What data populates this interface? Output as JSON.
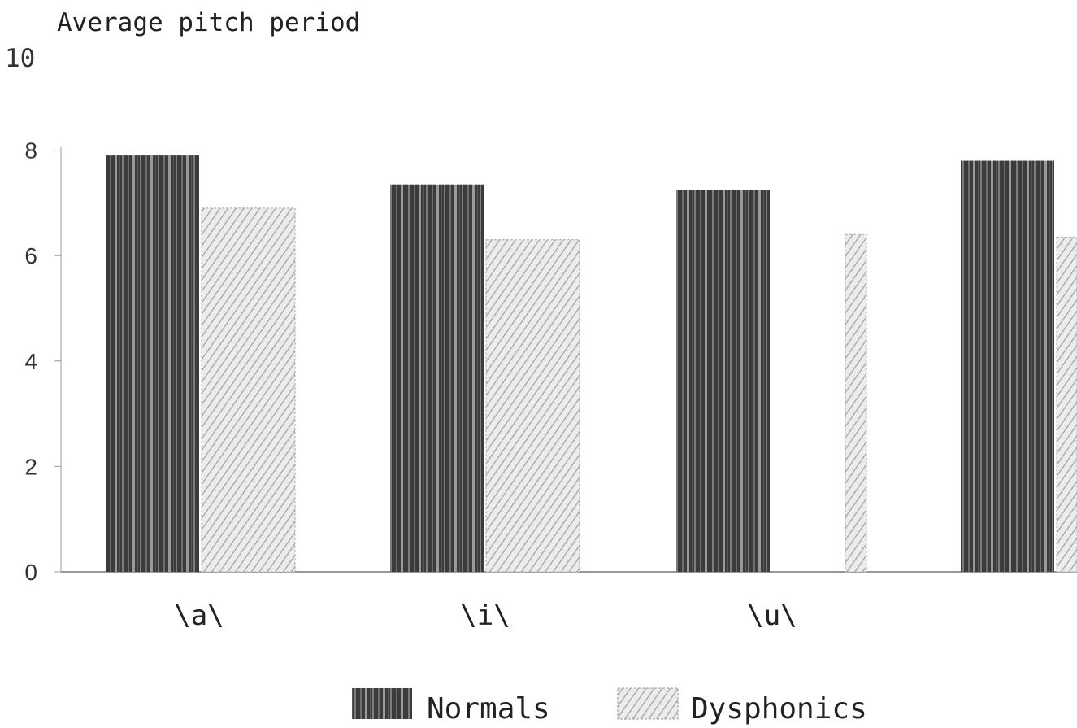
{
  "chart_data": {
    "type": "bar",
    "title": "Average pitch period",
    "xlabel": "",
    "ylabel": "",
    "ylim": [
      0,
      10
    ],
    "yticks": [
      "0",
      "2",
      "4",
      "6",
      "8",
      "10"
    ],
    "categories": [
      "\\a\\",
      "\\i\\",
      "\\u\\",
      ""
    ],
    "series": [
      {
        "name": "Normals",
        "values": [
          7.9,
          7.35,
          7.25,
          7.8
        ]
      },
      {
        "name": "Dysphonics",
        "values": [
          6.9,
          6.3,
          6.4,
          6.35
        ]
      }
    ],
    "legend_position": "bottom",
    "grid": false,
    "colors": {
      "Normals": "#3a3a3a",
      "Dysphonics": "#dcdcdc"
    }
  }
}
